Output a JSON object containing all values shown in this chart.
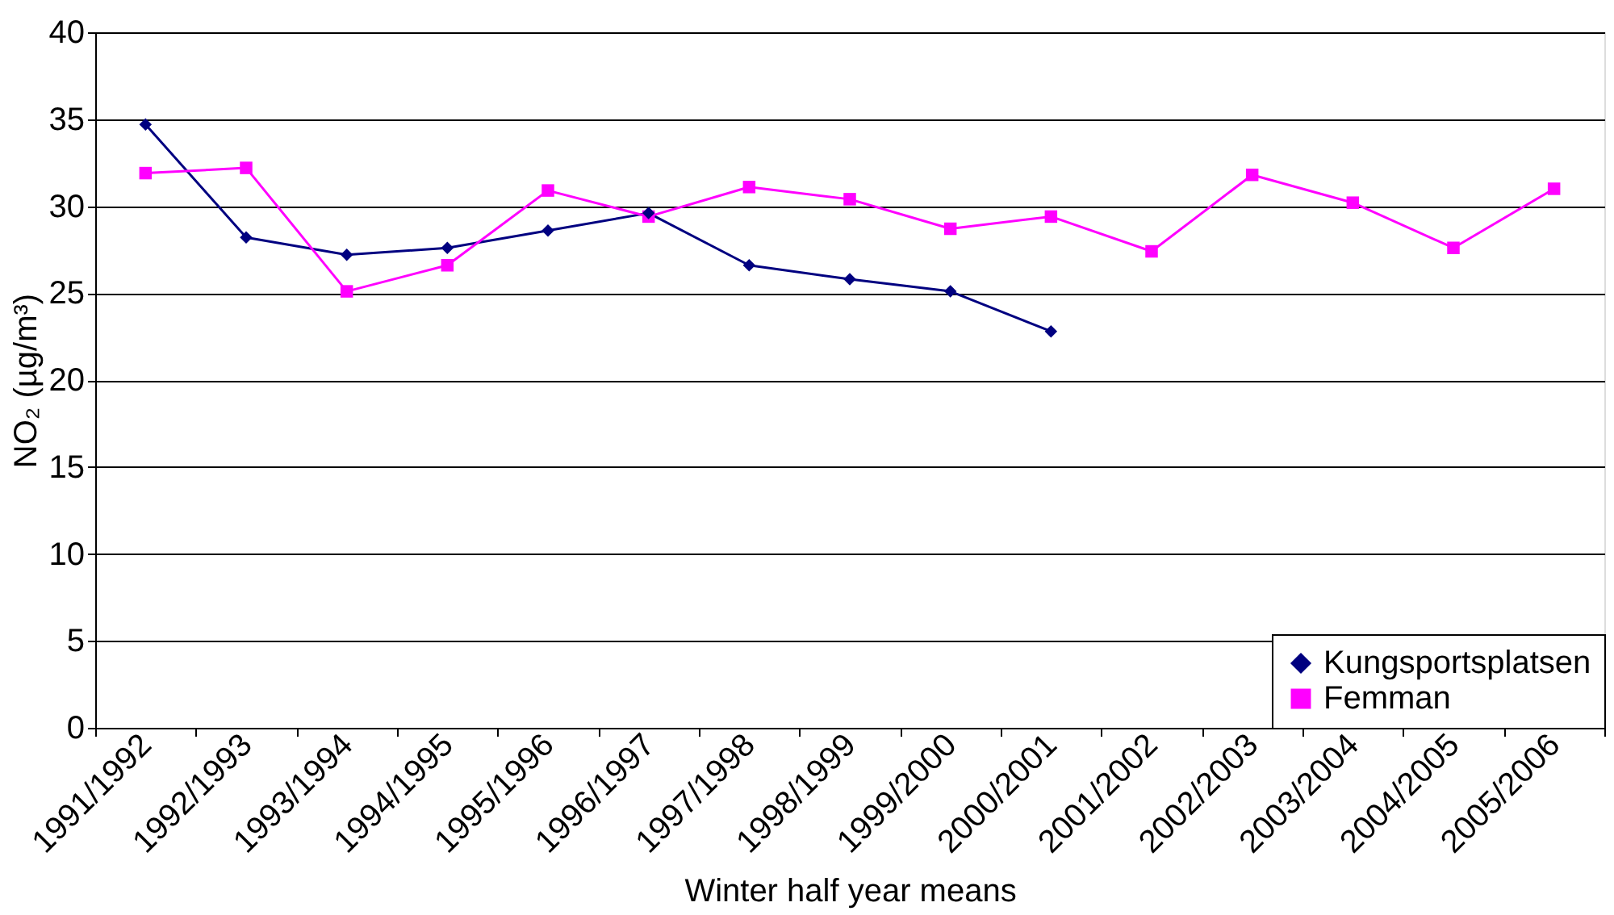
{
  "chart_data": {
    "type": "line",
    "categories": [
      "1991/1992",
      "1992/1993",
      "1993/1994",
      "1994/1995",
      "1995/1996",
      "1996/1997",
      "1997/1998",
      "1998/1999",
      "1999/2000",
      "2000/2001",
      "2001/2002",
      "2002/2003",
      "2003/2004",
      "2004/2005",
      "2005/2006"
    ],
    "series": [
      {
        "name": "Kungsportsplatsen",
        "color": "#000080",
        "marker": "diamond",
        "values": [
          34.7,
          28.2,
          27.2,
          27.6,
          28.6,
          29.6,
          26.6,
          25.8,
          25.1,
          22.8,
          null,
          null,
          null,
          null,
          null
        ]
      },
      {
        "name": "Femman",
        "color": "#ff00ff",
        "marker": "square",
        "values": [
          31.9,
          32.2,
          25.1,
          26.6,
          30.9,
          29.4,
          31.1,
          30.4,
          28.7,
          29.4,
          27.4,
          31.8,
          30.2,
          27.6,
          31.0
        ]
      }
    ],
    "xlabel": "Winter half year means",
    "ylabel": "NO₂ (µg/m³)",
    "ylim": [
      0,
      40
    ],
    "yticks": [
      0,
      5,
      10,
      15,
      20,
      25,
      30,
      35,
      40
    ],
    "grid": "y",
    "legend": "bottom right",
    "line_style": "solid"
  }
}
